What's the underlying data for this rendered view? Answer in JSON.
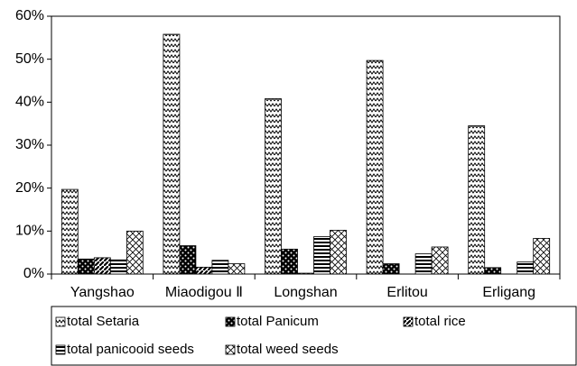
{
  "chart_data": {
    "type": "bar",
    "categories": [
      "Yangshao",
      "Miaodigou Ⅱ",
      "Longshan",
      "Erlitou",
      "Erligang"
    ],
    "series": [
      {
        "name": "total Setaria",
        "color": "#000000",
        "values": [
          19.7,
          55.8,
          40.8,
          49.7,
          34.5
        ]
      },
      {
        "name": "total Panicum",
        "color": "#000000",
        "values": [
          3.5,
          6.6,
          5.8,
          2.4,
          1.5
        ]
      },
      {
        "name": "total rice",
        "color": "#000000",
        "values": [
          3.8,
          1.6,
          0.2,
          0,
          0
        ]
      },
      {
        "name": "total panicooid seeds",
        "color": "#000000",
        "values": [
          3.3,
          3.2,
          8.7,
          4.7,
          2.8
        ]
      },
      {
        "name": "total weed seeds",
        "color": "#000000",
        "values": [
          10,
          2.4,
          10.2,
          6.3,
          8.3
        ]
      }
    ],
    "ylim": [
      0,
      60
    ],
    "yticks": [
      {
        "value": 0,
        "label": "0%"
      },
      {
        "value": 10,
        "label": "10%"
      },
      {
        "value": 20,
        "label": "20%"
      },
      {
        "value": 30,
        "label": "30%"
      },
      {
        "value": 40,
        "label": "40%"
      },
      {
        "value": 50,
        "label": "50%"
      },
      {
        "value": 60,
        "label": "60%"
      }
    ],
    "grid": false
  }
}
